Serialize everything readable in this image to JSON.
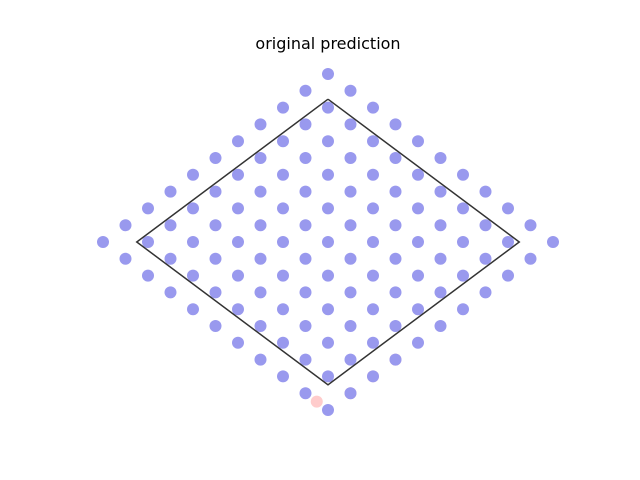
{
  "chart_data": {
    "type": "scatter",
    "title": "original prediction",
    "xlabel": "",
    "ylabel": "",
    "xlim": [
      -1.05,
      1.05
    ],
    "ylim": [
      -1.05,
      1.05
    ],
    "axes_visible": false,
    "grid": false,
    "grid_step": 0.1,
    "colors": {
      "blue": "#9999ee",
      "pink": "#ffcccc",
      "outline": "#333333"
    },
    "outline": {
      "name": "boundary",
      "vertices": [
        [
          0,
          0.85
        ],
        [
          0.85,
          0
        ],
        [
          0,
          -0.85
        ],
        [
          -0.85,
          0
        ],
        [
          0,
          0.85
        ]
      ]
    },
    "series": [
      {
        "color_key": "pink",
        "points": [
          [
            -0.05,
            -0.95
          ],
          [
            0.1,
            -0.9
          ],
          [
            0.2,
            -0.8
          ],
          [
            0.3,
            -0.7
          ]
        ]
      },
      {
        "color_key": "blue",
        "rule": "all lattice points with |x| + |y| <= 1.0 at step 0.1 where x/0.1 + y/0.1 is even"
      }
    ]
  }
}
